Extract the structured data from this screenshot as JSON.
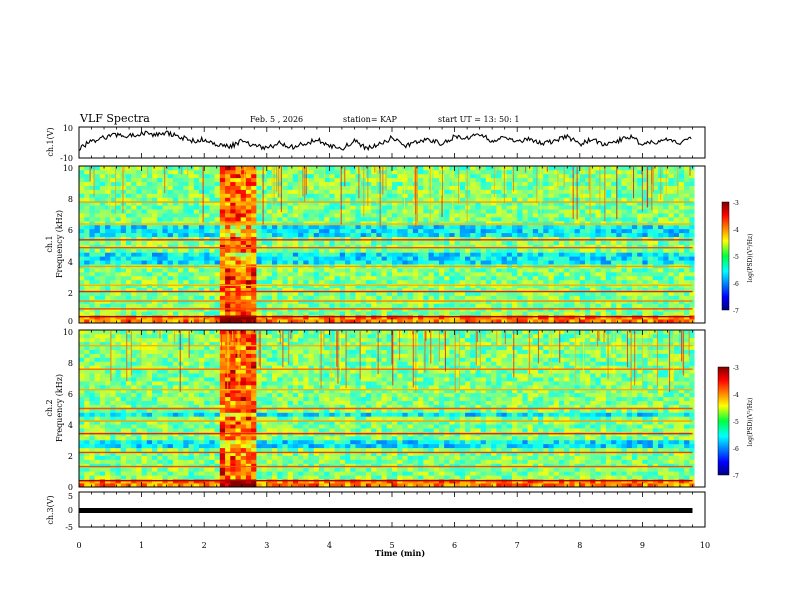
{
  "header": {
    "title": "VLF Spectra",
    "date": "Feb. 5  , 2026",
    "station": "station= KAP",
    "start": "start  UT =   13: 50: 1"
  },
  "chart_data": [
    {
      "type": "line",
      "id": "ch1_waveform",
      "ylabel": "ch.1(V)",
      "ylim": [
        -10,
        10
      ],
      "yticks": [
        "10",
        "-10"
      ],
      "xlim": [
        0,
        10
      ],
      "series": [
        {
          "name": "ch.1",
          "x": [
            0,
            0.2,
            0.4,
            0.6,
            0.8,
            1.0,
            1.2,
            1.4,
            1.6,
            1.8,
            2.0,
            2.2,
            2.4,
            2.6,
            2.8,
            3.0,
            3.2,
            3.4,
            3.6,
            3.8,
            4.0,
            4.2,
            4.4,
            4.6,
            4.8,
            5.0,
            5.2,
            5.4,
            5.6,
            5.8,
            6.0,
            6.2,
            6.4,
            6.6,
            6.8,
            7.0,
            7.2,
            7.4,
            7.6,
            7.8,
            8.0,
            8.2,
            8.4,
            8.6,
            8.8,
            9.0,
            9.2,
            9.4,
            9.6,
            9.8
          ],
          "y": [
            -4,
            1,
            3,
            5,
            4,
            6,
            5,
            6,
            4,
            1,
            2,
            -1,
            -3,
            1,
            -2,
            -4,
            0,
            -3,
            -1,
            2,
            -2,
            -4,
            1,
            -4,
            -1,
            3,
            -2,
            0,
            2,
            -1,
            4,
            3,
            5,
            1,
            3,
            0,
            2,
            -1,
            1,
            4,
            -1,
            2,
            -2,
            1,
            4,
            -1,
            0,
            2,
            0,
            3
          ]
        }
      ]
    },
    {
      "type": "heatmap",
      "id": "ch1_spectrogram",
      "title": "ch.1",
      "ylabel": "Frequency (kHz)",
      "ylim": [
        0,
        10
      ],
      "yticks": [
        "0",
        "2",
        "4",
        "6",
        "8",
        "10"
      ],
      "xlim": [
        0,
        10
      ],
      "colorbar": {
        "label": "log(PSD)(V²/Hz)",
        "range": [
          -7,
          -3
        ],
        "ticks": [
          "-3",
          "-4",
          "-5",
          "-6",
          "-7"
        ]
      },
      "bright_interval_min": [
        2.25,
        2.85
      ],
      "freq_lines_khz": [
        {
          "f": 0.4,
          "v": 0.95
        },
        {
          "f": 0.9,
          "v": 0.8
        },
        {
          "f": 1.4,
          "v": 0.75
        },
        {
          "f": 2.0,
          "v": 0.85
        },
        {
          "f": 2.4,
          "v": 0.7
        },
        {
          "f": 3.6,
          "v": 0.72
        },
        {
          "f": 4.8,
          "v": 0.8
        },
        {
          "f": 5.3,
          "v": 0.85
        },
        {
          "f": 6.3,
          "v": 0.7
        },
        {
          "f": 7.7,
          "v": 0.72
        }
      ],
      "dark_bands_khz": [
        [
          3.8,
          4.5
        ],
        [
          5.5,
          6.2
        ]
      ]
    },
    {
      "type": "heatmap",
      "id": "ch2_spectrogram",
      "title": "ch.2",
      "ylabel": "Frequency (kHz)",
      "ylim": [
        0,
        10
      ],
      "yticks": [
        "0",
        "2",
        "4",
        "6",
        "8",
        "10"
      ],
      "xlim": [
        0,
        10
      ],
      "colorbar": {
        "label": "log(PSD)(V²/Hz)",
        "range": [
          -7,
          -3
        ],
        "ticks": [
          "-3",
          "-4",
          "-5",
          "-6",
          "-7"
        ]
      },
      "bright_interval_min": [
        2.25,
        2.85
      ],
      "freq_lines_khz": [
        {
          "f": 0.4,
          "v": 0.95
        },
        {
          "f": 1.3,
          "v": 0.8
        },
        {
          "f": 2.2,
          "v": 0.82
        },
        {
          "f": 3.4,
          "v": 0.85
        },
        {
          "f": 4.2,
          "v": 0.72
        },
        {
          "f": 5.0,
          "v": 0.8
        },
        {
          "f": 6.2,
          "v": 0.7
        },
        {
          "f": 7.5,
          "v": 0.76
        },
        {
          "f": 9.0,
          "v": 0.7
        }
      ],
      "dark_bands_khz": [
        [
          2.6,
          3.0
        ],
        [
          4.4,
          4.8
        ]
      ]
    },
    {
      "type": "line",
      "id": "ch3_waveform",
      "ylabel": "ch.3(V)",
      "ylim": [
        -5,
        5
      ],
      "yticks": [
        "5",
        "0",
        "-5"
      ],
      "xlim": [
        0,
        10
      ],
      "series": [
        {
          "name": "ch.3",
          "x": [
            0,
            9.8
          ],
          "y": [
            0,
            0
          ]
        }
      ]
    }
  ],
  "xaxis": {
    "label": "Time  (min)",
    "ticks": [
      "0",
      "1",
      "2",
      "3",
      "4",
      "5",
      "6",
      "7",
      "8",
      "9",
      "10"
    ]
  }
}
